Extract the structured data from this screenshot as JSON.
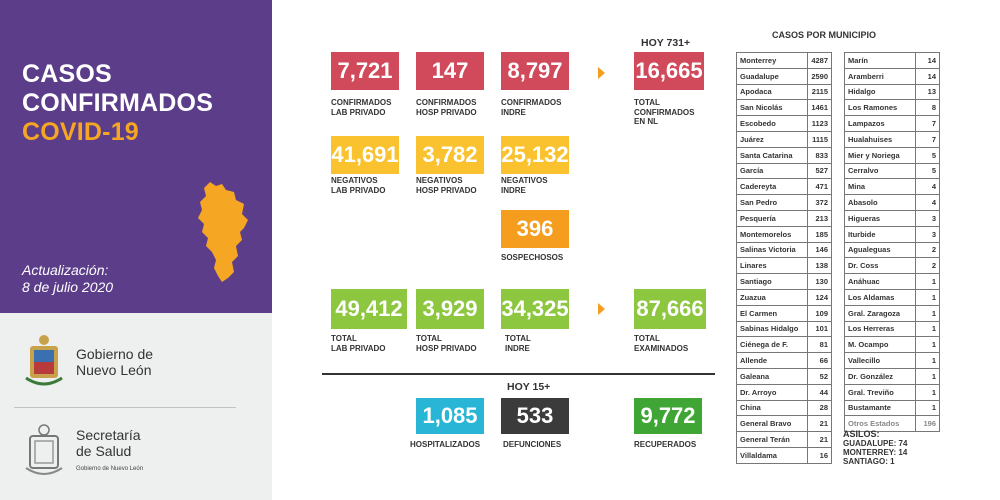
{
  "header": {
    "title_line1": "CASOS",
    "title_line2": "CONFIRMADOS",
    "title_line3": "COVID-19",
    "update_label": "Actualización:",
    "update_date": "8 de julio 2020"
  },
  "logos": {
    "gobierno_line1": "Gobierno de",
    "gobierno_line2": "Nuevo León",
    "salud_line1": "Secretaría",
    "salud_line2": "de Salud",
    "salud_sub": "Gobierno de Nuevo León"
  },
  "confirmados": {
    "lab_privado": "7,721",
    "lab_privado_l1": "CONFIRMADOS",
    "lab_privado_l2": "LAB PRIVADO",
    "hosp_privado": "147",
    "hosp_privado_l1": "CONFIRMADOS",
    "hosp_privado_l2": "HOSP PRIVADO",
    "indre": "8,797",
    "indre_l1": "CONFIRMADOS",
    "indre_l2": "INDRE",
    "hoy": "HOY 731+",
    "total": "16,665",
    "total_l1": "TOTAL",
    "total_l2": "CONFIRMADOS",
    "total_l3": "EN NL"
  },
  "negativos": {
    "lab_privado": "41,691",
    "lab_privado_l1": "NEGATIVOS",
    "lab_privado_l2": "LAB PRIVADO",
    "hosp_privado": "3,782",
    "hosp_privado_l1": "NEGATIVOS",
    "hosp_privado_l2": "HOSP PRIVADO",
    "indre": "25,132",
    "indre_l1": "NEGATIVOS",
    "indre_l2": "INDRE"
  },
  "sospechosos": {
    "value": "396",
    "label": "SOSPECHOSOS"
  },
  "totales": {
    "lab_privado": "49,412",
    "lab_privado_l1": "TOTAL",
    "lab_privado_l2": "LAB PRIVADO",
    "hosp_privado": "3,929",
    "hosp_privado_l1": "TOTAL",
    "hosp_privado_l2": "HOSP PRIVADO",
    "indre": "34,325",
    "indre_l1": "TOTAL",
    "indre_l2": "INDRE",
    "examinados": "87,666",
    "examinados_l1": "TOTAL",
    "examinados_l2": "EXAMINADOS"
  },
  "hoy15": {
    "label": "HOY 15+",
    "hospitalizados": "1,085",
    "hospitalizados_l": "HOSPITALIZADOS",
    "defunciones": "533",
    "defunciones_l": "DEFUNCIONES",
    "recuperados": "9,772",
    "recuperados_l": "RECUPERADOS"
  },
  "municipios": {
    "title": "CASOS POR MUNICIPIO",
    "col1": [
      [
        "Monterrey",
        "4287"
      ],
      [
        "Guadalupe",
        "2590"
      ],
      [
        "Apodaca",
        "2115"
      ],
      [
        "San Nicolás",
        "1461"
      ],
      [
        "Escobedo",
        "1123"
      ],
      [
        "Juárez",
        "1115"
      ],
      [
        "Santa Catarina",
        "833"
      ],
      [
        "García",
        "527"
      ],
      [
        "Cadereyta",
        "471"
      ],
      [
        "San Pedro",
        "372"
      ],
      [
        "Pesquería",
        "213"
      ],
      [
        "Montemorelos",
        "185"
      ],
      [
        "Salinas Victoria",
        "146"
      ],
      [
        "Linares",
        "138"
      ],
      [
        "Santiago",
        "130"
      ],
      [
        "Zuazua",
        "124"
      ],
      [
        "El Carmen",
        "109"
      ],
      [
        "Sabinas Hidalgo",
        "101"
      ],
      [
        "Ciénega de F.",
        "81"
      ],
      [
        "Allende",
        "66"
      ],
      [
        "Galeana",
        "52"
      ],
      [
        "Dr. Arroyo",
        "44"
      ],
      [
        "China",
        "28"
      ],
      [
        "General Bravo",
        "21"
      ],
      [
        "General Terán",
        "21"
      ],
      [
        "Villaldama",
        "16"
      ]
    ],
    "col2": [
      [
        "Marín",
        "14"
      ],
      [
        "Aramberri",
        "14"
      ],
      [
        "Hidalgo",
        "13"
      ],
      [
        "Los Ramones",
        "8"
      ],
      [
        "Lampazos",
        "7"
      ],
      [
        "Hualahuises",
        "7"
      ],
      [
        "Mier y Noriega",
        "5"
      ],
      [
        "Cerralvo",
        "5"
      ],
      [
        "Mina",
        "4"
      ],
      [
        "Abasolo",
        "4"
      ],
      [
        "Higueras",
        "3"
      ],
      [
        "Iturbide",
        "3"
      ],
      [
        "Agualeguas",
        "2"
      ],
      [
        "Dr. Coss",
        "2"
      ],
      [
        "Anáhuac",
        "1"
      ],
      [
        "Los Aldamas",
        "1"
      ],
      [
        "Gral. Zaragoza",
        "1"
      ],
      [
        "Los Herreras",
        "1"
      ],
      [
        "M. Ocampo",
        "1"
      ],
      [
        "Vallecillo",
        "1"
      ],
      [
        "Dr. González",
        "1"
      ],
      [
        "Gral. Treviño",
        "1"
      ],
      [
        "Bustamante",
        "1"
      ],
      [
        "Otros Estados",
        "196"
      ]
    ]
  },
  "asilos": {
    "title": "ASILOS:",
    "line1": "GUADALUPE: 74",
    "line2": "MONTERREY: 14",
    "line3": "SANTIAGO: 1"
  },
  "colors": {
    "purple": "#5c3d8a",
    "accent_orange": "#f5a623",
    "red": "#d04a5c",
    "yellow": "#f9c22e",
    "orange": "#f59d1e",
    "green": "#8dc63f",
    "cyan": "#29b6d6",
    "dark": "#3b3b3b",
    "dark_green": "#3fa535"
  },
  "icons": [
    "nuevo-leon-map-icon",
    "state-seal-icon",
    "salud-seal-icon",
    "arrow-right-icon"
  ]
}
